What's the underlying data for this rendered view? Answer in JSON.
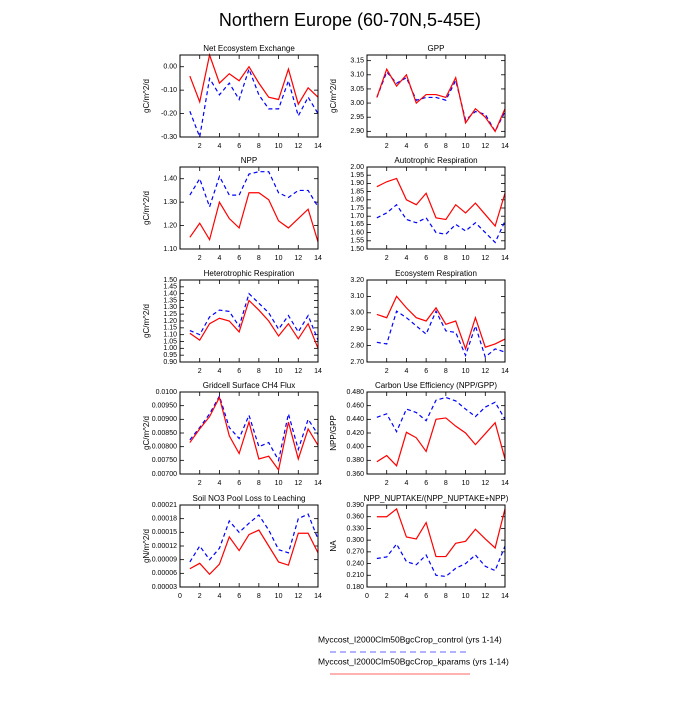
{
  "title": "Northern Europe (60-70N,5-45E)",
  "legend": [
    {
      "name": "Myccost_I2000Clm50BgcCrop_control (yrs 1-14)",
      "color": "#0000ff",
      "dash": true
    },
    {
      "name": "Myccost_I2000Clm50BgcCrop_kparams (yrs 1-14)",
      "color": "#ff0000",
      "dash": false
    }
  ],
  "chart_data": [
    {
      "type": "line",
      "title": "Net Ecosystem Exchange",
      "ylabel": "gC/m^2/d",
      "x": [
        1,
        2,
        3,
        4,
        5,
        6,
        7,
        8,
        9,
        10,
        11,
        12,
        13,
        14
      ],
      "xlim": [
        0,
        14
      ],
      "xticks": [
        2,
        4,
        6,
        8,
        10,
        12,
        14
      ],
      "ylim": [
        -0.3,
        0.05
      ],
      "yticks": [
        {
          "value": -0.3,
          "label": "-0.30"
        },
        {
          "value": -0.2,
          "label": "-0.20"
        },
        {
          "value": -0.1,
          "label": "-0.10"
        },
        {
          "value": 0,
          "label": "0.00"
        }
      ],
      "series": [
        {
          "color": "#0000ff",
          "dash": true,
          "values": [
            -0.19,
            -0.3,
            -0.05,
            -0.12,
            -0.07,
            -0.14,
            -0.01,
            -0.12,
            -0.18,
            -0.18,
            -0.06,
            -0.21,
            -0.13,
            -0.2
          ]
        },
        {
          "color": "#ff0000",
          "dash": false,
          "values": [
            -0.04,
            -0.15,
            0.05,
            -0.07,
            -0.03,
            -0.06,
            0.0,
            -0.07,
            -0.13,
            -0.14,
            -0.01,
            -0.16,
            -0.09,
            -0.13
          ]
        }
      ]
    },
    {
      "type": "line",
      "title": "GPP",
      "ylabel": "gC/m^2/d",
      "x": [
        1,
        2,
        3,
        4,
        5,
        6,
        7,
        8,
        9,
        10,
        11,
        12,
        13,
        14
      ],
      "xlim": [
        0,
        14
      ],
      "xticks": [
        2,
        4,
        6,
        8,
        10,
        12,
        14
      ],
      "ylim": [
        2.88,
        3.17
      ],
      "yticks": [
        {
          "value": 2.9,
          "label": "2.90"
        },
        {
          "value": 2.95,
          "label": "2.95"
        },
        {
          "value": 3,
          "label": "3.00"
        },
        {
          "value": 3.05,
          "label": "3.05"
        },
        {
          "value": 3.1,
          "label": "3.10"
        },
        {
          "value": 3.15,
          "label": "3.15"
        }
      ],
      "series": [
        {
          "color": "#0000ff",
          "dash": true,
          "values": [
            3.02,
            3.11,
            3.07,
            3.09,
            3.01,
            3.02,
            3.02,
            3.01,
            3.08,
            2.94,
            2.97,
            2.96,
            2.9,
            2.97
          ]
        },
        {
          "color": "#ff0000",
          "dash": false,
          "values": [
            3.02,
            3.12,
            3.06,
            3.1,
            3.0,
            3.03,
            3.03,
            3.02,
            3.09,
            2.93,
            2.98,
            2.95,
            2.9,
            2.98
          ]
        }
      ]
    },
    {
      "type": "line",
      "title": "NPP",
      "ylabel": "gC/m^2/d",
      "x": [
        1,
        2,
        3,
        4,
        5,
        6,
        7,
        8,
        9,
        10,
        11,
        12,
        13,
        14
      ],
      "xlim": [
        0,
        14
      ],
      "xticks": [
        2,
        4,
        6,
        8,
        10,
        12,
        14
      ],
      "ylim": [
        1.1,
        1.45
      ],
      "yticks": [
        {
          "value": 1.1,
          "label": "1.10"
        },
        {
          "value": 1.2,
          "label": "1.20"
        },
        {
          "value": 1.3,
          "label": "1.30"
        },
        {
          "value": 1.4,
          "label": "1.40"
        }
      ],
      "series": [
        {
          "color": "#0000ff",
          "dash": true,
          "values": [
            1.33,
            1.4,
            1.28,
            1.41,
            1.33,
            1.33,
            1.42,
            1.43,
            1.43,
            1.34,
            1.32,
            1.35,
            1.35,
            1.28
          ]
        },
        {
          "color": "#ff0000",
          "dash": false,
          "values": [
            1.15,
            1.21,
            1.14,
            1.3,
            1.23,
            1.19,
            1.34,
            1.34,
            1.31,
            1.22,
            1.19,
            1.23,
            1.27,
            1.13
          ]
        }
      ]
    },
    {
      "type": "line",
      "title": "Autotrophic Respiration",
      "x": [
        1,
        2,
        3,
        4,
        5,
        6,
        7,
        8,
        9,
        10,
        11,
        12,
        13,
        14
      ],
      "xlim": [
        0,
        14
      ],
      "xticks": [
        2,
        4,
        6,
        8,
        10,
        12,
        14
      ],
      "ylim": [
        1.5,
        2.0
      ],
      "yticks": [
        {
          "value": 1.5,
          "label": "1.50"
        },
        {
          "value": 1.55,
          "label": "1.55"
        },
        {
          "value": 1.6,
          "label": "1.60"
        },
        {
          "value": 1.65,
          "label": "1.65"
        },
        {
          "value": 1.7,
          "label": "1.70"
        },
        {
          "value": 1.75,
          "label": "1.75"
        },
        {
          "value": 1.8,
          "label": "1.80"
        },
        {
          "value": 1.85,
          "label": "1.85"
        },
        {
          "value": 1.9,
          "label": "1.90"
        },
        {
          "value": 1.95,
          "label": "1.95"
        },
        {
          "value": 2.0,
          "label": "2.00"
        }
      ],
      "series": [
        {
          "color": "#0000ff",
          "dash": true,
          "values": [
            1.69,
            1.72,
            1.77,
            1.68,
            1.66,
            1.69,
            1.6,
            1.59,
            1.65,
            1.61,
            1.66,
            1.6,
            1.54,
            1.67
          ]
        },
        {
          "color": "#ff0000",
          "dash": false,
          "values": [
            1.88,
            1.91,
            1.93,
            1.8,
            1.77,
            1.84,
            1.69,
            1.68,
            1.77,
            1.72,
            1.78,
            1.71,
            1.64,
            1.84
          ]
        }
      ]
    },
    {
      "type": "line",
      "title": "Heterotrophic Respiration",
      "ylabel": "gC/m^2/d",
      "x": [
        1,
        2,
        3,
        4,
        5,
        6,
        7,
        8,
        9,
        10,
        11,
        12,
        13,
        14
      ],
      "xlim": [
        0,
        14
      ],
      "xticks": [
        2,
        4,
        6,
        8,
        10,
        12,
        14
      ],
      "ylim": [
        0.9,
        1.5
      ],
      "yticks": [
        {
          "value": 0.9,
          "label": "0.90"
        },
        {
          "value": 0.95,
          "label": "0.95"
        },
        {
          "value": 1.0,
          "label": "1.00"
        },
        {
          "value": 1.05,
          "label": "1.05"
        },
        {
          "value": 1.1,
          "label": "1.10"
        },
        {
          "value": 1.15,
          "label": "1.15"
        },
        {
          "value": 1.2,
          "label": "1.20"
        },
        {
          "value": 1.25,
          "label": "1.25"
        },
        {
          "value": 1.3,
          "label": "1.30"
        },
        {
          "value": 1.35,
          "label": "1.35"
        },
        {
          "value": 1.4,
          "label": "1.40"
        },
        {
          "value": 1.45,
          "label": "1.45"
        },
        {
          "value": 1.5,
          "label": "1.50"
        }
      ],
      "series": [
        {
          "color": "#0000ff",
          "dash": true,
          "values": [
            1.13,
            1.1,
            1.23,
            1.28,
            1.27,
            1.16,
            1.4,
            1.33,
            1.26,
            1.14,
            1.24,
            1.12,
            1.24,
            1.06
          ]
        },
        {
          "color": "#ff0000",
          "dash": false,
          "values": [
            1.11,
            1.06,
            1.18,
            1.22,
            1.2,
            1.12,
            1.35,
            1.28,
            1.2,
            1.09,
            1.18,
            1.07,
            1.18,
            1.0
          ]
        }
      ]
    },
    {
      "type": "line",
      "title": "Ecosystem Respiration",
      "x": [
        1,
        2,
        3,
        4,
        5,
        6,
        7,
        8,
        9,
        10,
        11,
        12,
        13,
        14
      ],
      "xlim": [
        0,
        14
      ],
      "xticks": [
        2,
        4,
        6,
        8,
        10,
        12,
        14
      ],
      "ylim": [
        2.7,
        3.2
      ],
      "yticks": [
        {
          "value": 2.7,
          "label": "2.70"
        },
        {
          "value": 2.8,
          "label": "2.80"
        },
        {
          "value": 2.9,
          "label": "2.90"
        },
        {
          "value": 3.0,
          "label": "3.00"
        },
        {
          "value": 3.1,
          "label": "3.10"
        },
        {
          "value": 3.2,
          "label": "3.20"
        }
      ],
      "series": [
        {
          "color": "#0000ff",
          "dash": true,
          "values": [
            2.82,
            2.81,
            3.01,
            2.97,
            2.92,
            2.87,
            3.01,
            2.89,
            2.88,
            2.74,
            2.92,
            2.73,
            2.78,
            2.76
          ]
        },
        {
          "color": "#ff0000",
          "dash": false,
          "values": [
            2.99,
            2.97,
            3.1,
            3.03,
            2.97,
            2.95,
            3.03,
            2.93,
            2.95,
            2.78,
            2.97,
            2.79,
            2.81,
            2.84
          ]
        }
      ]
    },
    {
      "type": "line",
      "title": "Gridcell Surface CH4 Flux",
      "ylabel": "gC/m^2/d",
      "x": [
        1,
        2,
        3,
        4,
        5,
        6,
        7,
        8,
        9,
        10,
        11,
        12,
        13,
        14
      ],
      "xlim": [
        0,
        14
      ],
      "xticks": [
        2,
        4,
        6,
        8,
        10,
        12,
        14
      ],
      "ylim": [
        0.007,
        0.01
      ],
      "yticks": [
        {
          "value": 0.007,
          "label": "0.00700"
        },
        {
          "value": 0.0075,
          "label": "0.00750"
        },
        {
          "value": 0.008,
          "label": "0.00800"
        },
        {
          "value": 0.0085,
          "label": "0.00850"
        },
        {
          "value": 0.009,
          "label": "0.00900"
        },
        {
          "value": 0.0095,
          "label": "0.00950"
        },
        {
          "value": 0.01,
          "label": "0.0100"
        }
      ],
      "series": [
        {
          "color": "#0000ff",
          "dash": true,
          "values": [
            0.00825,
            0.0087,
            0.0092,
            0.00985,
            0.0087,
            0.0083,
            0.00915,
            0.008,
            0.00815,
            0.0075,
            0.0092,
            0.0079,
            0.009,
            0.00845
          ]
        },
        {
          "color": "#ff0000",
          "dash": false,
          "values": [
            0.00815,
            0.00865,
            0.0091,
            0.0098,
            0.0084,
            0.00775,
            0.0089,
            0.00755,
            0.00765,
            0.00715,
            0.0089,
            0.00755,
            0.00865,
            0.00805
          ]
        }
      ]
    },
    {
      "type": "line",
      "title": "Carbon Use Efficiency (NPP/GPP)",
      "ylabel": "NPP/GPP",
      "x": [
        1,
        2,
        3,
        4,
        5,
        6,
        7,
        8,
        9,
        10,
        11,
        12,
        13,
        14
      ],
      "xlim": [
        0,
        14
      ],
      "xticks": [
        2,
        4,
        6,
        8,
        10,
        12,
        14
      ],
      "ylim": [
        0.36,
        0.48
      ],
      "yticks": [
        {
          "value": 0.36,
          "label": "0.360"
        },
        {
          "value": 0.38,
          "label": "0.380"
        },
        {
          "value": 0.4,
          "label": "0.400"
        },
        {
          "value": 0.42,
          "label": "0.420"
        },
        {
          "value": 0.44,
          "label": "0.440"
        },
        {
          "value": 0.46,
          "label": "0.460"
        },
        {
          "value": 0.48,
          "label": "0.480"
        }
      ],
      "series": [
        {
          "color": "#0000ff",
          "dash": true,
          "values": [
            0.443,
            0.448,
            0.422,
            0.455,
            0.45,
            0.438,
            0.468,
            0.472,
            0.467,
            0.455,
            0.444,
            0.458,
            0.465,
            0.44
          ]
        },
        {
          "color": "#ff0000",
          "dash": false,
          "values": [
            0.378,
            0.387,
            0.372,
            0.421,
            0.413,
            0.393,
            0.44,
            0.442,
            0.43,
            0.42,
            0.403,
            0.419,
            0.435,
            0.382
          ]
        }
      ]
    },
    {
      "type": "line",
      "title": "Soil NO3 Pool Loss to Leaching",
      "ylabel": "gN/m^2/d",
      "x": [
        1,
        2,
        3,
        4,
        5,
        6,
        7,
        8,
        9,
        10,
        11,
        12,
        13,
        14
      ],
      "xlim": [
        0,
        14
      ],
      "xticks": [
        0,
        2,
        4,
        6,
        8,
        10,
        12,
        14
      ],
      "ylim": [
        3e-05,
        0.00021
      ],
      "yticks": [
        {
          "value": 3e-05,
          "label": "0.00003"
        },
        {
          "value": 6e-05,
          "label": "0.00006"
        },
        {
          "value": 9e-05,
          "label": "0.00009"
        },
        {
          "value": 0.00012,
          "label": "0.00012"
        },
        {
          "value": 0.00015,
          "label": "0.00015"
        },
        {
          "value": 0.00018,
          "label": "0.00018"
        },
        {
          "value": 0.00021,
          "label": "0.00021"
        }
      ],
      "series": [
        {
          "color": "#0000ff",
          "dash": true,
          "values": [
            8.5e-05,
            0.00012,
            9e-05,
            0.000115,
            0.000175,
            0.00015,
            0.00017,
            0.000188,
            0.000155,
            0.000112,
            0.000105,
            0.00018,
            0.00019,
            0.000135
          ]
        },
        {
          "color": "#ff0000",
          "dash": false,
          "values": [
            7e-05,
            8.2e-05,
            5.8e-05,
            8e-05,
            0.00014,
            0.00011,
            0.000145,
            0.000155,
            0.00012,
            8.5e-05,
            7.8e-05,
            0.000148,
            0.000148,
            0.000105
          ]
        }
      ]
    },
    {
      "type": "line",
      "title": "NPP_NUPTAKE/(NPP_NUPTAKE+NPP)",
      "ylabel": "NA",
      "x": [
        1,
        2,
        3,
        4,
        5,
        6,
        7,
        8,
        9,
        10,
        11,
        12,
        13,
        14
      ],
      "xlim": [
        0,
        14
      ],
      "xticks": [
        0,
        2,
        4,
        6,
        8,
        10,
        12,
        14
      ],
      "ylim": [
        0.18,
        0.39
      ],
      "yticks": [
        {
          "value": 0.18,
          "label": "0.180"
        },
        {
          "value": 0.21,
          "label": "0.210"
        },
        {
          "value": 0.24,
          "label": "0.240"
        },
        {
          "value": 0.27,
          "label": "0.270"
        },
        {
          "value": 0.3,
          "label": "0.300"
        },
        {
          "value": 0.33,
          "label": "0.330"
        },
        {
          "value": 0.36,
          "label": "0.360"
        },
        {
          "value": 0.39,
          "label": "0.390"
        }
      ],
      "series": [
        {
          "color": "#0000ff",
          "dash": true,
          "values": [
            0.253,
            0.257,
            0.29,
            0.245,
            0.237,
            0.262,
            0.21,
            0.207,
            0.228,
            0.24,
            0.262,
            0.233,
            0.222,
            0.285
          ]
        },
        {
          "color": "#ff0000",
          "dash": false,
          "values": [
            0.36,
            0.36,
            0.38,
            0.308,
            0.303,
            0.345,
            0.258,
            0.258,
            0.292,
            0.297,
            0.328,
            0.303,
            0.28,
            0.38
          ]
        }
      ]
    }
  ]
}
